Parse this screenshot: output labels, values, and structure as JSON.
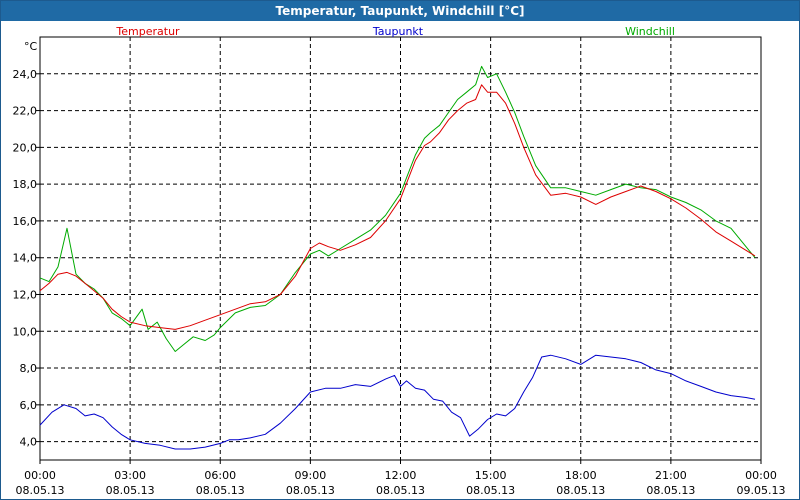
{
  "window": {
    "title": "Temperatur, Taupunkt, Windchill [°C]"
  },
  "colors": {
    "temperature": "#dd0000",
    "dewpoint": "#0000cc",
    "windchill": "#00aa00",
    "grid": "#000000",
    "titlebar": "#1f6aa5"
  },
  "chart_data": {
    "type": "line",
    "title": "Temperatur, Taupunkt, Windchill [°C]",
    "ylabel": "°C",
    "xlabel": "",
    "ylim": [
      3.0,
      26.0
    ],
    "xlim": [
      0,
      24
    ],
    "grid": true,
    "legend": [
      "Temperatur",
      "Taupunkt",
      "Windchill"
    ],
    "yticks": [
      4.0,
      6.0,
      8.0,
      10.0,
      12.0,
      14.0,
      16.0,
      18.0,
      20.0,
      22.0,
      24.0
    ],
    "ytick_labels": [
      "4,0",
      "6,0",
      "8,0",
      "10,0",
      "12,0",
      "14,0",
      "16,0",
      "18,0",
      "20,0",
      "22,0",
      "24,0"
    ],
    "xticks": [
      0,
      3,
      6,
      9,
      12,
      15,
      18,
      21,
      24
    ],
    "xtick_labels": [
      {
        "time": "00:00",
        "date": "08.05.13"
      },
      {
        "time": "03:00",
        "date": "08.05.13"
      },
      {
        "time": "06:00",
        "date": "08.05.13"
      },
      {
        "time": "09:00",
        "date": "08.05.13"
      },
      {
        "time": "12:00",
        "date": "08.05.13"
      },
      {
        "time": "15:00",
        "date": "08.05.13"
      },
      {
        "time": "18:00",
        "date": "08.05.13"
      },
      {
        "time": "21:00",
        "date": "08.05.13"
      },
      {
        "time": "00:00",
        "date": "09.05.13"
      }
    ],
    "series": [
      {
        "name": "Temperatur",
        "x": [
          0,
          0.3,
          0.6,
          0.9,
          1.2,
          1.5,
          1.8,
          2.1,
          2.4,
          2.7,
          3.0,
          3.5,
          4.0,
          4.5,
          5.0,
          5.5,
          6.0,
          6.5,
          7.0,
          7.5,
          8.0,
          8.5,
          9.0,
          9.3,
          9.6,
          10.0,
          10.5,
          11.0,
          11.5,
          12.0,
          12.5,
          12.8,
          13.0,
          13.3,
          13.6,
          13.9,
          14.2,
          14.5,
          14.7,
          14.9,
          15.2,
          15.5,
          15.8,
          16.1,
          16.5,
          17.0,
          17.5,
          18.0,
          18.5,
          19.0,
          19.5,
          20.0,
          20.5,
          21.0,
          21.5,
          22.0,
          22.5,
          23.0,
          23.5,
          23.8
        ],
        "y": [
          12.2,
          12.6,
          13.1,
          13.2,
          13.0,
          12.6,
          12.2,
          11.8,
          11.2,
          10.8,
          10.5,
          10.3,
          10.2,
          10.1,
          10.3,
          10.6,
          10.9,
          11.2,
          11.5,
          11.6,
          12.0,
          13.0,
          14.5,
          14.8,
          14.6,
          14.4,
          14.7,
          15.1,
          16.0,
          17.2,
          19.3,
          20.1,
          20.3,
          20.8,
          21.5,
          22.0,
          22.4,
          22.6,
          23.4,
          23.0,
          23.0,
          22.4,
          21.3,
          20.0,
          18.5,
          17.4,
          17.5,
          17.3,
          16.9,
          17.3,
          17.6,
          17.9,
          17.6,
          17.2,
          16.7,
          16.1,
          15.4,
          14.9,
          14.4,
          14.1
        ]
      },
      {
        "name": "Taupunkt",
        "x": [
          0,
          0.4,
          0.8,
          1.2,
          1.5,
          1.8,
          2.1,
          2.4,
          2.7,
          3.0,
          3.5,
          4.0,
          4.5,
          5.0,
          5.5,
          6.0,
          6.3,
          6.6,
          7.0,
          7.5,
          8.0,
          8.5,
          9.0,
          9.5,
          10.0,
          10.5,
          11.0,
          11.5,
          11.8,
          12.0,
          12.2,
          12.5,
          12.8,
          13.1,
          13.4,
          13.7,
          14.0,
          14.3,
          14.6,
          14.9,
          15.2,
          15.5,
          15.8,
          16.1,
          16.4,
          16.7,
          17.0,
          17.5,
          18.0,
          18.5,
          19.0,
          19.5,
          20.0,
          20.5,
          21.0,
          21.5,
          22.0,
          22.5,
          23.0,
          23.5,
          23.8
        ],
        "y": [
          4.9,
          5.6,
          6.0,
          5.8,
          5.4,
          5.5,
          5.3,
          4.8,
          4.4,
          4.1,
          3.9,
          3.8,
          3.6,
          3.6,
          3.7,
          3.9,
          4.1,
          4.1,
          4.2,
          4.4,
          5.0,
          5.8,
          6.7,
          6.9,
          6.9,
          7.1,
          7.0,
          7.4,
          7.6,
          7.0,
          7.3,
          6.9,
          6.8,
          6.3,
          6.2,
          5.6,
          5.3,
          4.3,
          4.7,
          5.2,
          5.5,
          5.4,
          5.8,
          6.7,
          7.5,
          8.6,
          8.7,
          8.5,
          8.2,
          8.7,
          8.6,
          8.5,
          8.3,
          7.9,
          7.7,
          7.3,
          7.0,
          6.7,
          6.5,
          6.4,
          6.3
        ]
      },
      {
        "name": "Windchill",
        "x": [
          0,
          0.3,
          0.6,
          0.9,
          1.2,
          1.5,
          1.8,
          2.1,
          2.4,
          2.7,
          3.0,
          3.4,
          3.6,
          3.9,
          4.2,
          4.5,
          4.8,
          5.1,
          5.5,
          5.8,
          6.0,
          6.5,
          7.0,
          7.5,
          8.0,
          8.5,
          9.0,
          9.3,
          9.6,
          10.0,
          10.5,
          11.0,
          11.5,
          12.0,
          12.5,
          12.8,
          13.0,
          13.3,
          13.6,
          13.9,
          14.2,
          14.5,
          14.7,
          14.9,
          15.2,
          15.5,
          15.8,
          16.1,
          16.5,
          17.0,
          17.5,
          18.0,
          18.5,
          19.0,
          19.5,
          20.0,
          20.5,
          21.0,
          21.5,
          22.0,
          22.5,
          23.0,
          23.5,
          23.8
        ],
        "y": [
          12.9,
          12.7,
          13.5,
          15.6,
          13.1,
          12.6,
          12.3,
          11.8,
          11.0,
          10.7,
          10.3,
          11.2,
          10.1,
          10.5,
          9.6,
          8.9,
          9.3,
          9.7,
          9.5,
          9.8,
          10.2,
          11.0,
          11.3,
          11.4,
          12.0,
          13.2,
          14.2,
          14.4,
          14.1,
          14.5,
          15.0,
          15.5,
          16.3,
          17.5,
          19.6,
          20.5,
          20.8,
          21.2,
          21.9,
          22.6,
          23.0,
          23.4,
          24.4,
          23.8,
          24.0,
          23.0,
          21.9,
          20.6,
          19.0,
          17.8,
          17.8,
          17.6,
          17.4,
          17.7,
          18.0,
          17.8,
          17.7,
          17.3,
          17.0,
          16.6,
          16.0,
          15.6,
          14.6,
          14.0
        ]
      }
    ]
  }
}
